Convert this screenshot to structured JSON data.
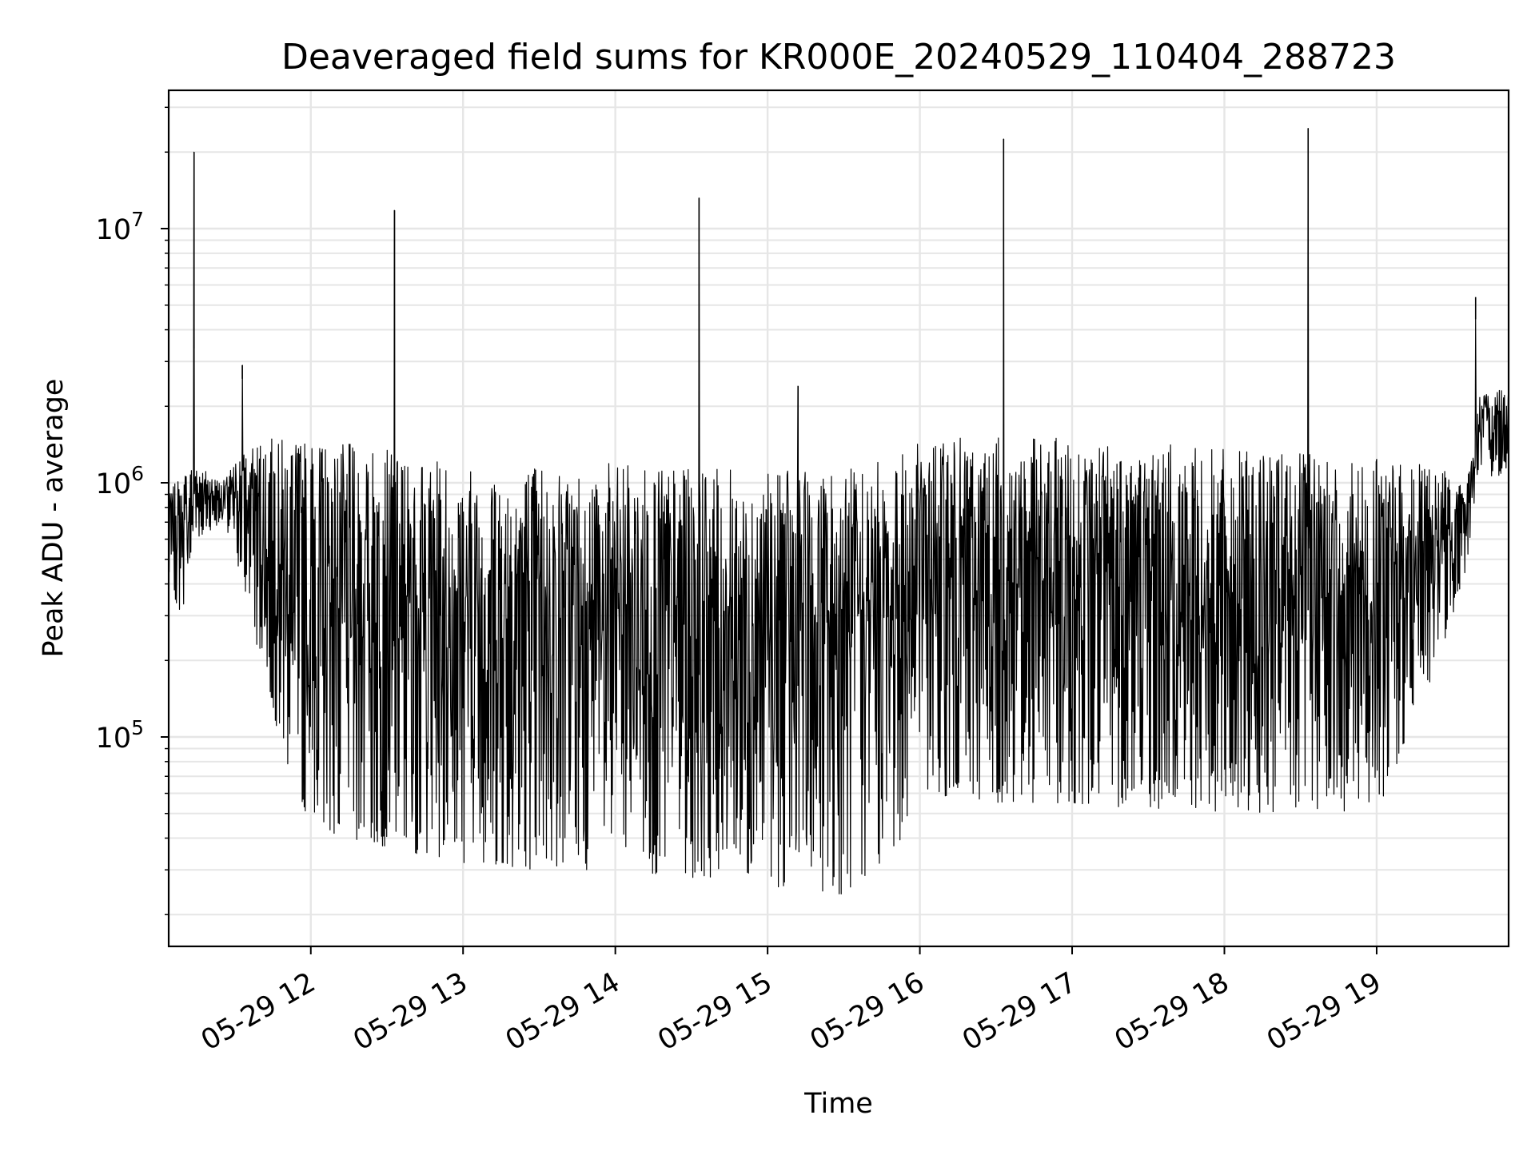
{
  "chart_data": {
    "type": "line",
    "title": "Deaveraged field sums for KR000E_20240529_110404_288723",
    "xlabel": "Time",
    "ylabel": "Peak ADU - average",
    "yscale": "log",
    "ylim": [
      15000,
      35000000
    ],
    "xlim": [
      "2024-05-29 11:04",
      "2024-05-29 19:52"
    ],
    "grid": true,
    "x_ticks": [
      {
        "value": "2024-05-29 12:00",
        "label": "05-29 12"
      },
      {
        "value": "2024-05-29 13:00",
        "label": "05-29 13"
      },
      {
        "value": "2024-05-29 14:00",
        "label": "05-29 14"
      },
      {
        "value": "2024-05-29 15:00",
        "label": "05-29 15"
      },
      {
        "value": "2024-05-29 16:00",
        "label": "05-29 16"
      },
      {
        "value": "2024-05-29 17:00",
        "label": "05-29 17"
      },
      {
        "value": "2024-05-29 18:00",
        "label": "05-29 18"
      },
      {
        "value": "2024-05-29 19:00",
        "label": "05-29 19"
      }
    ],
    "y_ticks": [
      {
        "value": 100000,
        "base": "10",
        "exp": "5"
      },
      {
        "value": 1000000,
        "base": "10",
        "exp": "6"
      },
      {
        "value": 10000000,
        "base": "10",
        "exp": "7"
      }
    ],
    "series": [
      {
        "color": "#000000",
        "envelope": [
          {
            "x": "2024-05-29 11:04",
            "low": 400000,
            "high": 900000
          },
          {
            "x": "2024-05-29 11:09",
            "low": 300000,
            "high": 1100000
          },
          {
            "x": "2024-05-29 11:15",
            "low": 600000,
            "high": 1200000
          },
          {
            "x": "2024-05-29 11:25",
            "low": 700000,
            "high": 1000000
          },
          {
            "x": "2024-05-29 11:32",
            "low": 450000,
            "high": 1300000
          },
          {
            "x": "2024-05-29 11:40",
            "low": 200000,
            "high": 1500000
          },
          {
            "x": "2024-05-29 11:50",
            "low": 80000,
            "high": 1500000
          },
          {
            "x": "2024-05-29 12:00",
            "low": 45000,
            "high": 1500000
          },
          {
            "x": "2024-05-29 12:20",
            "low": 38000,
            "high": 1400000
          },
          {
            "x": "2024-05-29 12:40",
            "low": 35000,
            "high": 1300000
          },
          {
            "x": "2024-05-29 13:00",
            "low": 32000,
            "high": 1200000
          },
          {
            "x": "2024-05-29 13:30",
            "low": 30000,
            "high": 1200000
          },
          {
            "x": "2024-05-29 14:00",
            "low": 30000,
            "high": 1200000
          },
          {
            "x": "2024-05-29 14:30",
            "low": 28000,
            "high": 1150000
          },
          {
            "x": "2024-05-29 15:00",
            "low": 26000,
            "high": 1100000
          },
          {
            "x": "2024-05-29 15:30",
            "low": 24000,
            "high": 1150000
          },
          {
            "x": "2024-05-29 15:50",
            "low": 35000,
            "high": 1250000
          },
          {
            "x": "2024-05-29 16:00",
            "low": 60000,
            "high": 1500000
          },
          {
            "x": "2024-05-29 16:30",
            "low": 55000,
            "high": 1500000
          },
          {
            "x": "2024-05-29 17:00",
            "low": 55000,
            "high": 1500000
          },
          {
            "x": "2024-05-29 17:30",
            "low": 52000,
            "high": 1450000
          },
          {
            "x": "2024-05-29 18:00",
            "low": 50000,
            "high": 1350000
          },
          {
            "x": "2024-05-29 18:30",
            "low": 50000,
            "high": 1300000
          },
          {
            "x": "2024-05-29 19:00",
            "low": 50000,
            "high": 1250000
          },
          {
            "x": "2024-05-29 19:20",
            "low": 150000,
            "high": 1200000
          },
          {
            "x": "2024-05-29 19:30",
            "low": 300000,
            "high": 1100000
          },
          {
            "x": "2024-05-29 19:35",
            "low": 450000,
            "high": 900000
          },
          {
            "x": "2024-05-29 19:40",
            "low": 1000000,
            "high": 2200000
          },
          {
            "x": "2024-05-29 19:52",
            "low": 1100000,
            "high": 2500000
          }
        ],
        "spikes": [
          {
            "x": "2024-05-29 11:14",
            "value": 20000000
          },
          {
            "x": "2024-05-29 11:33",
            "value": 2900000
          },
          {
            "x": "2024-05-29 12:33",
            "value": 11800000
          },
          {
            "x": "2024-05-29 14:33",
            "value": 13200000
          },
          {
            "x": "2024-05-29 15:12",
            "value": 2400000
          },
          {
            "x": "2024-05-29 16:33",
            "value": 22500000
          },
          {
            "x": "2024-05-29 18:33",
            "value": 24800000
          },
          {
            "x": "2024-05-29 19:39",
            "value": 4400000
          }
        ]
      }
    ]
  }
}
